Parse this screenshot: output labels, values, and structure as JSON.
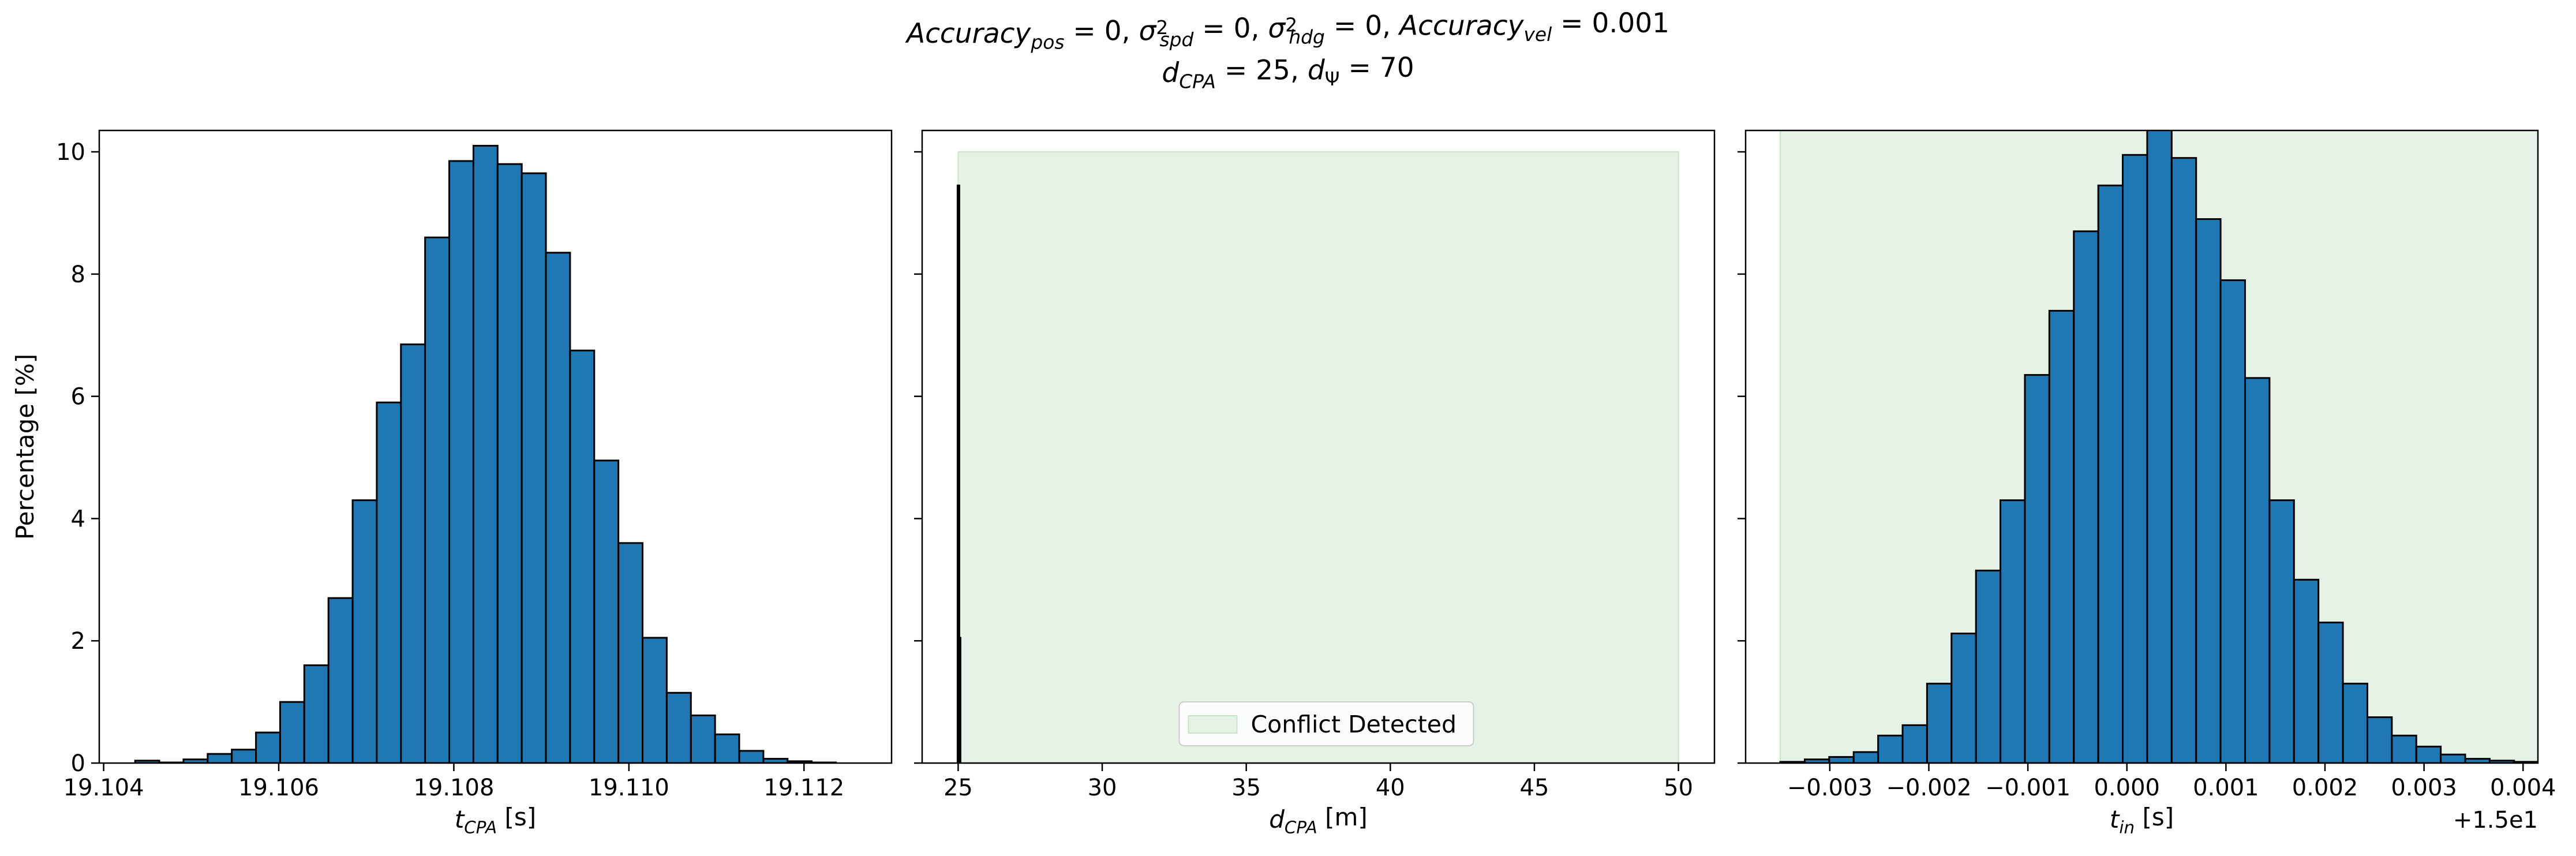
{
  "figure": {
    "title_line1_segments": [
      {
        "t": "Accuracy",
        "s": "italic"
      },
      {
        "t": "pos",
        "s": "sub-italic"
      },
      {
        "t": " = 0, ",
        "s": "normal"
      },
      {
        "t": "σ",
        "s": "italic"
      },
      {
        "t": "2",
        "s": "sup"
      },
      {
        "t": "spd",
        "s": "sub-italic"
      },
      {
        "t": " = 0, ",
        "s": "normal"
      },
      {
        "t": "σ",
        "s": "italic"
      },
      {
        "t": "2",
        "s": "sup"
      },
      {
        "t": "hdg",
        "s": "sub-italic"
      },
      {
        "t": " = 0, ",
        "s": "normal"
      },
      {
        "t": "Accuracy",
        "s": "italic"
      },
      {
        "t": "vel",
        "s": "sub-italic"
      },
      {
        "t": " = 0.001",
        "s": "normal"
      }
    ],
    "title_line2_segments": [
      {
        "t": "d",
        "s": "italic"
      },
      {
        "t": "CPA",
        "s": "sub-italic"
      },
      {
        "t": " = 25, ",
        "s": "normal"
      },
      {
        "t": "d",
        "s": "italic"
      },
      {
        "t": "Ψ",
        "s": "sub"
      },
      {
        "t": " = 70",
        "s": "normal"
      }
    ],
    "colors": {
      "bar": "#1f77b4",
      "bar_edge": "#000000",
      "conflict_fill": "#e5f2e5",
      "conflict_edge": "#c9e5c9"
    }
  },
  "chart_data": [
    {
      "type": "bar",
      "ylabel": "Percentage [%]",
      "xlabel_segments": [
        {
          "t": "t",
          "s": "italic"
        },
        {
          "t": "CPA",
          "s": "sub-italic"
        },
        {
          "t": " [s]",
          "s": "normal"
        }
      ],
      "xlim": [
        19.10395,
        19.113
      ],
      "ylim": [
        0,
        10.35
      ],
      "xticks": [
        19.104,
        19.106,
        19.108,
        19.11,
        19.112
      ],
      "xtick_labels": [
        "19.104",
        "19.106",
        "19.108",
        "19.110",
        "19.112"
      ],
      "yticks": [
        0,
        2,
        4,
        6,
        8,
        10
      ],
      "ytick_labels": [
        "0",
        "2",
        "4",
        "6",
        "8",
        "10"
      ],
      "bin_start": 19.10436,
      "bin_width": 0.000276,
      "values": [
        0.04,
        0.01,
        0.06,
        0.15,
        0.22,
        0.5,
        1.0,
        1.6,
        2.7,
        4.3,
        5.9,
        6.85,
        8.6,
        9.85,
        10.1,
        9.8,
        9.65,
        8.35,
        6.75,
        4.95,
        3.6,
        2.05,
        1.15,
        0.78,
        0.47,
        0.2,
        0.07,
        0.03,
        0.01
      ]
    },
    {
      "type": "bar",
      "xlabel_segments": [
        {
          "t": "d",
          "s": "italic"
        },
        {
          "t": "CPA",
          "s": "sub-italic"
        },
        {
          "t": " [m]",
          "s": "normal"
        }
      ],
      "xlim": [
        23.75,
        51.25
      ],
      "ylim": [
        0,
        10.35
      ],
      "xticks": [
        25,
        30,
        35,
        40,
        45,
        50
      ],
      "xtick_labels": [
        "25",
        "30",
        "35",
        "40",
        "45",
        "50"
      ],
      "yticks": [
        0,
        2,
        4,
        6,
        8,
        10
      ],
      "bars": [
        {
          "x0": 24.98,
          "x1": 25.02,
          "value": 9.45
        },
        {
          "x0": 25.02,
          "x1": 25.06,
          "value": 2.05
        }
      ],
      "conflict_region": {
        "x0": 25,
        "x1": 50,
        "y1": 10.0
      },
      "legend": {
        "label": "Conflict Detected",
        "placement": "lower-center"
      }
    },
    {
      "type": "bar",
      "xlabel_segments": [
        {
          "t": "t",
          "s": "italic"
        },
        {
          "t": "in",
          "s": "sub-italic"
        },
        {
          "t": " [s]",
          "s": "normal"
        }
      ],
      "offset_label": "+1.5e1",
      "xlim": [
        -0.00385,
        0.00415
      ],
      "ylim": [
        0,
        10.35
      ],
      "xticks": [
        -0.003,
        -0.002,
        -0.001,
        0.0,
        0.001,
        0.002,
        0.003,
        0.004
      ],
      "xtick_labels": [
        "−0.003",
        "−0.002",
        "−0.001",
        "0.000",
        "0.001",
        "0.002",
        "0.003",
        "0.004"
      ],
      "yticks": [
        0,
        2,
        4,
        6,
        8,
        10
      ],
      "conflict_region": {
        "x0": -0.0035,
        "x1": 0.00415,
        "y1": 10.35
      },
      "bin_start": -0.0035,
      "bin_width": 0.000247,
      "values": [
        0.02,
        0.06,
        0.1,
        0.18,
        0.45,
        0.62,
        1.3,
        2.12,
        3.15,
        4.3,
        6.35,
        7.4,
        8.7,
        9.45,
        9.95,
        10.4,
        9.9,
        8.9,
        7.9,
        6.3,
        4.3,
        3.0,
        2.3,
        1.3,
        0.75,
        0.45,
        0.27,
        0.14,
        0.07,
        0.04,
        0.02,
        0.01
      ]
    }
  ]
}
